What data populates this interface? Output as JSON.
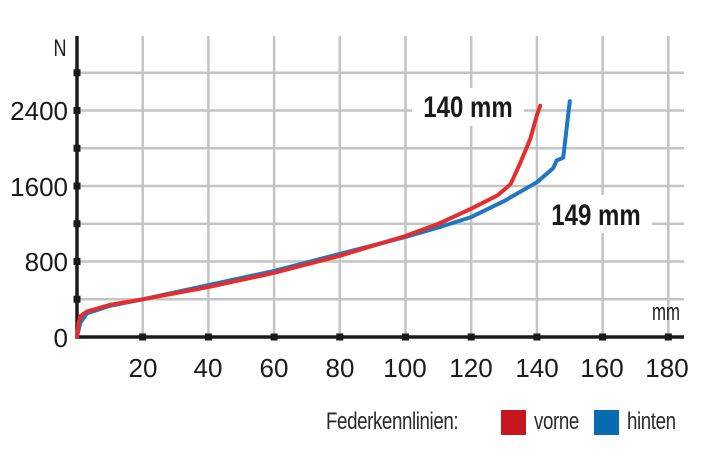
{
  "chart_data": {
    "type": "line",
    "title": "",
    "xlabel": "mm",
    "ylabel": "N",
    "xlim": [
      0,
      185
    ],
    "ylim": [
      0,
      2900
    ],
    "x_ticks": [
      20,
      40,
      60,
      80,
      100,
      120,
      140,
      160,
      180
    ],
    "y_ticks": [
      0,
      800,
      1600,
      2400
    ],
    "y_gridlines": [
      400,
      800,
      1200,
      1600,
      2000,
      2400,
      2800
    ],
    "grid": true,
    "legend_title": "Federkennlinien:",
    "legend_position": "bottom-right",
    "series": [
      {
        "name": "vorne",
        "color": "#e52d2d",
        "swatch_color": "#c8161e",
        "points": [
          [
            0,
            0
          ],
          [
            0.5,
            150
          ],
          [
            1,
            220
          ],
          [
            3,
            270
          ],
          [
            10,
            340
          ],
          [
            20,
            400
          ],
          [
            40,
            530
          ],
          [
            60,
            680
          ],
          [
            80,
            860
          ],
          [
            100,
            1070
          ],
          [
            110,
            1200
          ],
          [
            120,
            1360
          ],
          [
            128,
            1500
          ],
          [
            132,
            1620
          ],
          [
            135,
            1850
          ],
          [
            138,
            2100
          ],
          [
            140,
            2350
          ],
          [
            141,
            2450
          ]
        ]
      },
      {
        "name": "hinten",
        "color": "#1f77c0",
        "swatch_color": "#0a6cb0",
        "points": [
          [
            0,
            0
          ],
          [
            1,
            150
          ],
          [
            3,
            250
          ],
          [
            10,
            330
          ],
          [
            20,
            400
          ],
          [
            40,
            550
          ],
          [
            60,
            700
          ],
          [
            80,
            880
          ],
          [
            100,
            1060
          ],
          [
            110,
            1160
          ],
          [
            120,
            1270
          ],
          [
            130,
            1440
          ],
          [
            140,
            1640
          ],
          [
            145,
            1790
          ],
          [
            146,
            1870
          ],
          [
            148,
            1900
          ],
          [
            149,
            2200
          ],
          [
            150,
            2500
          ]
        ]
      }
    ],
    "annotations": [
      {
        "text": "140 mm",
        "series": "vorne",
        "x": 140,
        "y": 2450
      },
      {
        "text": "149 mm",
        "series": "hinten",
        "x": 149,
        "y": 1300
      }
    ]
  },
  "axis": {
    "y_unit": "N",
    "x_unit": "mm",
    "y_labels": [
      "0",
      "800",
      "1600",
      "2400"
    ],
    "x_labels": [
      "20",
      "40",
      "60",
      "80",
      "100",
      "120",
      "140",
      "160",
      "180"
    ]
  },
  "callouts": {
    "front": "140 mm",
    "rear": "149 mm"
  },
  "legend": {
    "title": "Federkennlinien:",
    "items": [
      {
        "label": "vorne",
        "color": "#c8161e"
      },
      {
        "label": "hinten",
        "color": "#0a6cb0"
      }
    ]
  }
}
